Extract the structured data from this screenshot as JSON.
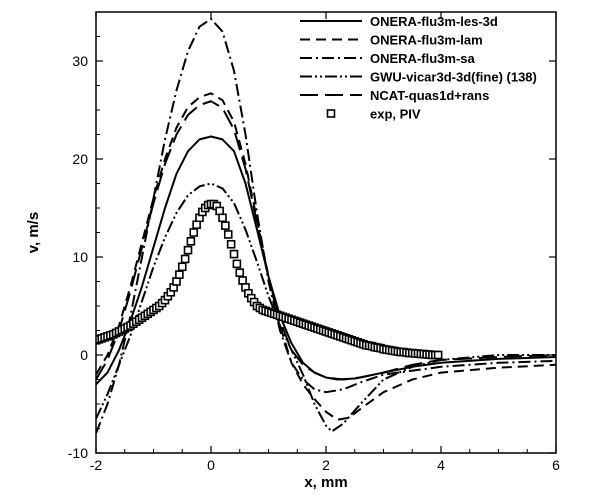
{
  "chart_data": {
    "type": "line",
    "title": "",
    "xlabel": "x, mm",
    "ylabel": "v, m/s",
    "xlim": [
      -2,
      6
    ],
    "ylim": [
      -10,
      35
    ],
    "xticks": [
      -2,
      0,
      2,
      4,
      6
    ],
    "yticks": [
      -10,
      0,
      10,
      20,
      30
    ],
    "grid": false,
    "legend_position": "top-right",
    "series": [
      {
        "name": "ONERA-flu3m-les-3d",
        "style": "solid",
        "color": "#000000",
        "points": [
          [
            -2,
            -3.0
          ],
          [
            -1.8,
            -1.8
          ],
          [
            -1.6,
            0.5
          ],
          [
            -1.4,
            3.5
          ],
          [
            -1.2,
            7.0
          ],
          [
            -1.0,
            11.0
          ],
          [
            -0.8,
            15.0
          ],
          [
            -0.6,
            18.5
          ],
          [
            -0.4,
            20.8
          ],
          [
            -0.2,
            22.0
          ],
          [
            0.0,
            22.3
          ],
          [
            0.2,
            22.0
          ],
          [
            0.4,
            20.8
          ],
          [
            0.6,
            17.5
          ],
          [
            0.8,
            12.8
          ],
          [
            1.0,
            8.0
          ],
          [
            1.2,
            4.0
          ],
          [
            1.4,
            1.2
          ],
          [
            1.6,
            -0.8
          ],
          [
            1.8,
            -1.8
          ],
          [
            2.0,
            -2.3
          ],
          [
            2.2,
            -2.5
          ],
          [
            2.5,
            -2.4
          ],
          [
            3.0,
            -1.8
          ],
          [
            3.5,
            -1.2
          ],
          [
            4.0,
            -0.8
          ],
          [
            5.0,
            -0.4
          ],
          [
            6.0,
            -0.2
          ]
        ]
      },
      {
        "name": "ONERA-flu3m-lam",
        "style": "dashed",
        "color": "#000000",
        "points": [
          [
            -2,
            -2.0
          ],
          [
            -1.8,
            0.0
          ],
          [
            -1.6,
            3.0
          ],
          [
            -1.4,
            7.0
          ],
          [
            -1.2,
            11.5
          ],
          [
            -1.0,
            16.0
          ],
          [
            -0.8,
            20.0
          ],
          [
            -0.6,
            23.2
          ],
          [
            -0.4,
            25.3
          ],
          [
            -0.2,
            26.3
          ],
          [
            0.0,
            26.7
          ],
          [
            0.2,
            26.0
          ],
          [
            0.4,
            23.8
          ],
          [
            0.6,
            19.5
          ],
          [
            0.8,
            13.8
          ],
          [
            1.0,
            8.0
          ],
          [
            1.2,
            3.0
          ],
          [
            1.4,
            -0.8
          ],
          [
            1.6,
            -3.0
          ],
          [
            1.8,
            -4.5
          ],
          [
            2.0,
            -5.8
          ],
          [
            2.2,
            -6.6
          ],
          [
            2.4,
            -6.4
          ],
          [
            2.6,
            -5.5
          ],
          [
            3.0,
            -3.8
          ],
          [
            3.5,
            -2.5
          ],
          [
            4.0,
            -1.8
          ],
          [
            5.0,
            -1.3
          ],
          [
            6.0,
            -1.0
          ]
        ]
      },
      {
        "name": "ONERA-flu3m-sa",
        "style": "dashdot",
        "color": "#000000",
        "points": [
          [
            -2,
            -8.0
          ],
          [
            -1.8,
            -5.0
          ],
          [
            -1.6,
            -1.0
          ],
          [
            -1.4,
            4.0
          ],
          [
            -1.2,
            10.0
          ],
          [
            -1.0,
            16.0
          ],
          [
            -0.8,
            22.0
          ],
          [
            -0.6,
            27.0
          ],
          [
            -0.4,
            31.0
          ],
          [
            -0.2,
            33.5
          ],
          [
            0.0,
            34.3
          ],
          [
            0.2,
            33.0
          ],
          [
            0.4,
            29.0
          ],
          [
            0.6,
            22.5
          ],
          [
            0.8,
            14.5
          ],
          [
            1.0,
            7.5
          ],
          [
            1.2,
            2.5
          ],
          [
            1.4,
            -0.8
          ],
          [
            1.6,
            -2.5
          ],
          [
            1.8,
            -3.5
          ],
          [
            2.0,
            -3.8
          ],
          [
            2.3,
            -3.5
          ],
          [
            2.6,
            -2.8
          ],
          [
            3.0,
            -2.0
          ],
          [
            4.0,
            -1.2
          ],
          [
            5.0,
            -0.8
          ],
          [
            6.0,
            -0.6
          ]
        ]
      },
      {
        "name": "GWU-vicar3d-3d(fine) (138)",
        "style": "dashdotdot",
        "color": "#000000",
        "points": [
          [
            -2,
            -6.5
          ],
          [
            -1.8,
            -4.0
          ],
          [
            -1.6,
            -1.0
          ],
          [
            -1.4,
            2.0
          ],
          [
            -1.2,
            5.5
          ],
          [
            -1.0,
            9.0
          ],
          [
            -0.8,
            12.0
          ],
          [
            -0.6,
            14.5
          ],
          [
            -0.4,
            16.3
          ],
          [
            -0.2,
            17.2
          ],
          [
            0.0,
            17.5
          ],
          [
            0.2,
            17.0
          ],
          [
            0.4,
            15.5
          ],
          [
            0.6,
            12.8
          ],
          [
            0.8,
            9.5
          ],
          [
            1.0,
            6.0
          ],
          [
            1.2,
            3.0
          ],
          [
            1.4,
            0.5
          ],
          [
            1.6,
            -2.0
          ],
          [
            1.8,
            -5.0
          ],
          [
            2.0,
            -7.2
          ],
          [
            2.1,
            -7.8
          ],
          [
            2.3,
            -7.0
          ],
          [
            2.6,
            -5.0
          ],
          [
            3.0,
            -2.5
          ],
          [
            3.5,
            -1.2
          ],
          [
            4.0,
            -0.5
          ],
          [
            5.0,
            0.0
          ],
          [
            6.0,
            0.0
          ]
        ]
      },
      {
        "name": "NCAT-quas1d+rans",
        "style": "longdash",
        "color": "#000000",
        "points": [
          [
            -2,
            -2.5
          ],
          [
            -1.8,
            -0.5
          ],
          [
            -1.6,
            2.5
          ],
          [
            -1.4,
            6.5
          ],
          [
            -1.2,
            11.0
          ],
          [
            -1.0,
            15.5
          ],
          [
            -0.8,
            19.5
          ],
          [
            -0.6,
            22.5
          ],
          [
            -0.4,
            24.5
          ],
          [
            -0.2,
            25.5
          ],
          [
            0.0,
            25.9
          ],
          [
            0.2,
            25.2
          ],
          [
            0.4,
            23.0
          ],
          [
            0.6,
            19.0
          ],
          [
            0.8,
            13.5
          ],
          [
            1.0,
            8.0
          ],
          [
            1.2,
            3.5
          ],
          [
            1.4,
            0.5
          ],
          [
            1.6,
            -1.0
          ],
          [
            1.8,
            -1.8
          ],
          [
            2.0,
            -2.3
          ],
          [
            2.3,
            -2.5
          ],
          [
            2.6,
            -2.3
          ],
          [
            3.0,
            -1.8
          ],
          [
            3.5,
            -1.0
          ],
          [
            4.0,
            -0.5
          ],
          [
            5.0,
            -0.2
          ],
          [
            6.0,
            0.0
          ]
        ]
      },
      {
        "name": "exp, PIV",
        "style": "square-markers",
        "color": "#000000",
        "points": [
          [
            -2.0,
            1.5
          ],
          [
            -1.95,
            1.6
          ],
          [
            -1.9,
            1.7
          ],
          [
            -1.85,
            1.8
          ],
          [
            -1.8,
            1.9
          ],
          [
            -1.75,
            2.0
          ],
          [
            -1.7,
            2.1
          ],
          [
            -1.65,
            2.25
          ],
          [
            -1.6,
            2.4
          ],
          [
            -1.55,
            2.55
          ],
          [
            -1.5,
            2.7
          ],
          [
            -1.45,
            2.85
          ],
          [
            -1.4,
            3.0
          ],
          [
            -1.35,
            3.2
          ],
          [
            -1.3,
            3.4
          ],
          [
            -1.25,
            3.6
          ],
          [
            -1.2,
            3.8
          ],
          [
            -1.15,
            4.0
          ],
          [
            -1.1,
            4.2
          ],
          [
            -1.05,
            4.4
          ],
          [
            -1.0,
            4.6
          ],
          [
            -0.95,
            4.8
          ],
          [
            -0.9,
            5.0
          ],
          [
            -0.85,
            5.3
          ],
          [
            -0.8,
            5.6
          ],
          [
            -0.75,
            6.0
          ],
          [
            -0.7,
            6.4
          ],
          [
            -0.65,
            6.9
          ],
          [
            -0.6,
            7.5
          ],
          [
            -0.55,
            8.2
          ],
          [
            -0.5,
            9.0
          ],
          [
            -0.45,
            9.8
          ],
          [
            -0.4,
            10.7
          ],
          [
            -0.35,
            11.6
          ],
          [
            -0.3,
            12.5
          ],
          [
            -0.25,
            13.3
          ],
          [
            -0.2,
            14.0
          ],
          [
            -0.15,
            14.6
          ],
          [
            -0.1,
            15.0
          ],
          [
            -0.05,
            15.3
          ],
          [
            0.0,
            15.4
          ],
          [
            0.05,
            15.4
          ],
          [
            0.1,
            15.2
          ],
          [
            0.15,
            14.7
          ],
          [
            0.2,
            14.0
          ],
          [
            0.25,
            13.2
          ],
          [
            0.3,
            12.3
          ],
          [
            0.35,
            11.3
          ],
          [
            0.4,
            10.3
          ],
          [
            0.45,
            9.3
          ],
          [
            0.5,
            8.4
          ],
          [
            0.55,
            7.6
          ],
          [
            0.6,
            6.9
          ],
          [
            0.65,
            6.3
          ],
          [
            0.7,
            5.8
          ],
          [
            0.75,
            5.4
          ],
          [
            0.8,
            5.0
          ],
          [
            0.85,
            4.8
          ],
          [
            0.9,
            4.6
          ],
          [
            0.95,
            4.5
          ],
          [
            1.0,
            4.4
          ],
          [
            1.05,
            4.3
          ],
          [
            1.1,
            4.2
          ],
          [
            1.15,
            4.1
          ],
          [
            1.2,
            4.0
          ],
          [
            1.25,
            3.9
          ],
          [
            1.3,
            3.8
          ],
          [
            1.35,
            3.7
          ],
          [
            1.4,
            3.6
          ],
          [
            1.45,
            3.5
          ],
          [
            1.5,
            3.4
          ],
          [
            1.55,
            3.3
          ],
          [
            1.6,
            3.2
          ],
          [
            1.65,
            3.1
          ],
          [
            1.7,
            3.0
          ],
          [
            1.75,
            2.9
          ],
          [
            1.8,
            2.8
          ],
          [
            1.85,
            2.7
          ],
          [
            1.9,
            2.6
          ],
          [
            1.95,
            2.5
          ],
          [
            2.0,
            2.4
          ],
          [
            2.05,
            2.3
          ],
          [
            2.1,
            2.2
          ],
          [
            2.15,
            2.1
          ],
          [
            2.2,
            2.0
          ],
          [
            2.25,
            1.9
          ],
          [
            2.3,
            1.8
          ],
          [
            2.35,
            1.7
          ],
          [
            2.4,
            1.6
          ],
          [
            2.45,
            1.5
          ],
          [
            2.5,
            1.4
          ],
          [
            2.55,
            1.3
          ],
          [
            2.6,
            1.2
          ],
          [
            2.65,
            1.1
          ],
          [
            2.7,
            1.0
          ],
          [
            2.75,
            0.95
          ],
          [
            2.8,
            0.9
          ],
          [
            2.85,
            0.8
          ],
          [
            2.9,
            0.75
          ],
          [
            2.95,
            0.7
          ],
          [
            3.0,
            0.6
          ],
          [
            3.05,
            0.55
          ],
          [
            3.1,
            0.5
          ],
          [
            3.15,
            0.45
          ],
          [
            3.2,
            0.4
          ],
          [
            3.25,
            0.35
          ],
          [
            3.3,
            0.3
          ],
          [
            3.35,
            0.3
          ],
          [
            3.4,
            0.25
          ],
          [
            3.45,
            0.2
          ],
          [
            3.5,
            0.2
          ],
          [
            3.55,
            0.15
          ],
          [
            3.6,
            0.15
          ],
          [
            3.65,
            0.1
          ],
          [
            3.7,
            0.1
          ],
          [
            3.75,
            0.05
          ],
          [
            3.8,
            0.05
          ],
          [
            3.85,
            0.0
          ],
          [
            3.9,
            0.0
          ],
          [
            3.95,
            0.0
          ]
        ]
      }
    ]
  }
}
